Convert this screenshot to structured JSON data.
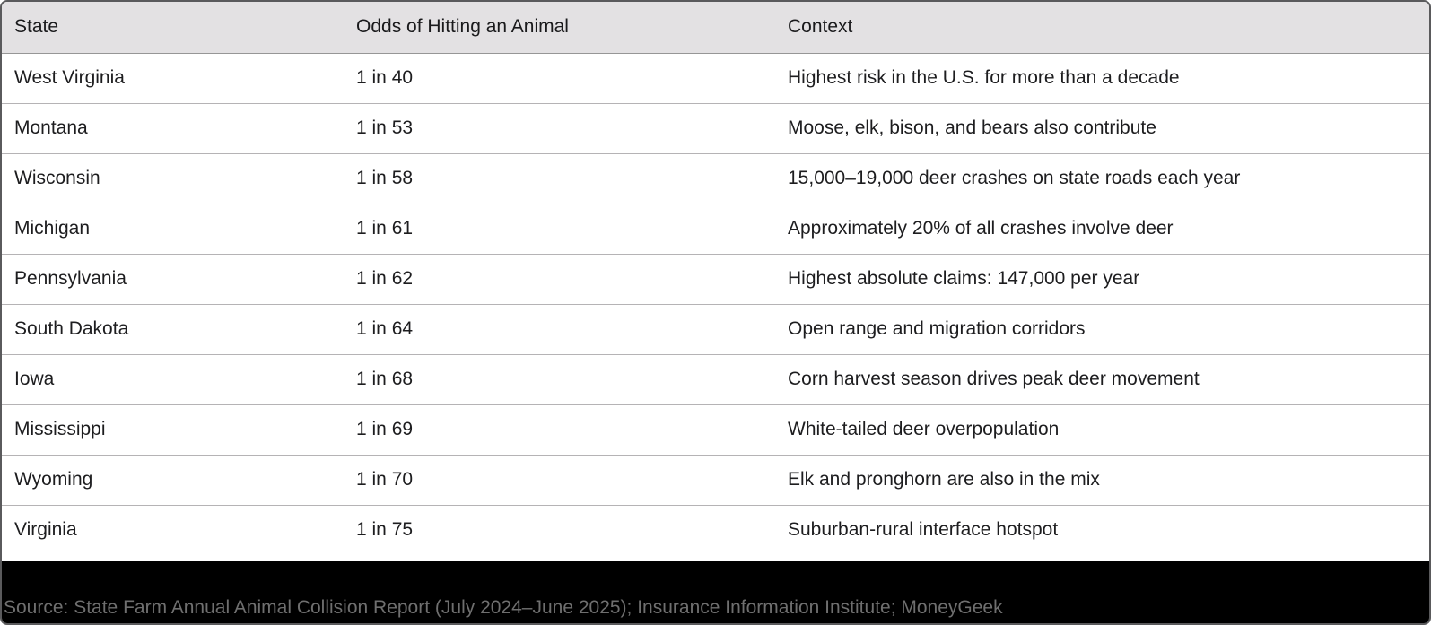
{
  "chart_data": {
    "type": "table",
    "columns": [
      "State",
      "Odds of Hitting an Animal",
      "Context"
    ],
    "rows": [
      [
        "West Virginia",
        "1 in 40",
        "Highest risk in the U.S. for more than a decade"
      ],
      [
        "Montana",
        "1 in 53",
        "Moose, elk, bison, and bears also contribute"
      ],
      [
        "Wisconsin",
        "1 in 58",
        "15,000–19,000 deer crashes on state roads each year"
      ],
      [
        "Michigan",
        "1 in 61",
        "Approximately 20% of all crashes involve deer"
      ],
      [
        "Pennsylvania",
        "1 in 62",
        "Highest absolute claims: 147,000 per year"
      ],
      [
        "South Dakota",
        "1 in 64",
        "Open range and migration corridors"
      ],
      [
        "Iowa",
        "1 in 68",
        "Corn harvest season drives peak deer movement"
      ],
      [
        "Mississippi",
        "1 in 69",
        "White-tailed deer overpopulation"
      ],
      [
        "Wyoming",
        "1 in 70",
        "Elk and pronghorn are also in the mix"
      ],
      [
        "Virginia",
        "1 in 75",
        "Suburban-rural interface hotspot"
      ]
    ]
  },
  "footer": {
    "source": "Source: State Farm Annual Animal Collision Report (July 2024–June 2025); Insurance Information Institute; MoneyGeek"
  },
  "colors": {
    "header_bg": "#e3e1e3",
    "row_separator": "#b5b3b5",
    "body_text": "#1d1d1f",
    "footer_bg": "#000000",
    "footer_text": "#6f6f6f",
    "outer_border": "#5a5a5c"
  }
}
